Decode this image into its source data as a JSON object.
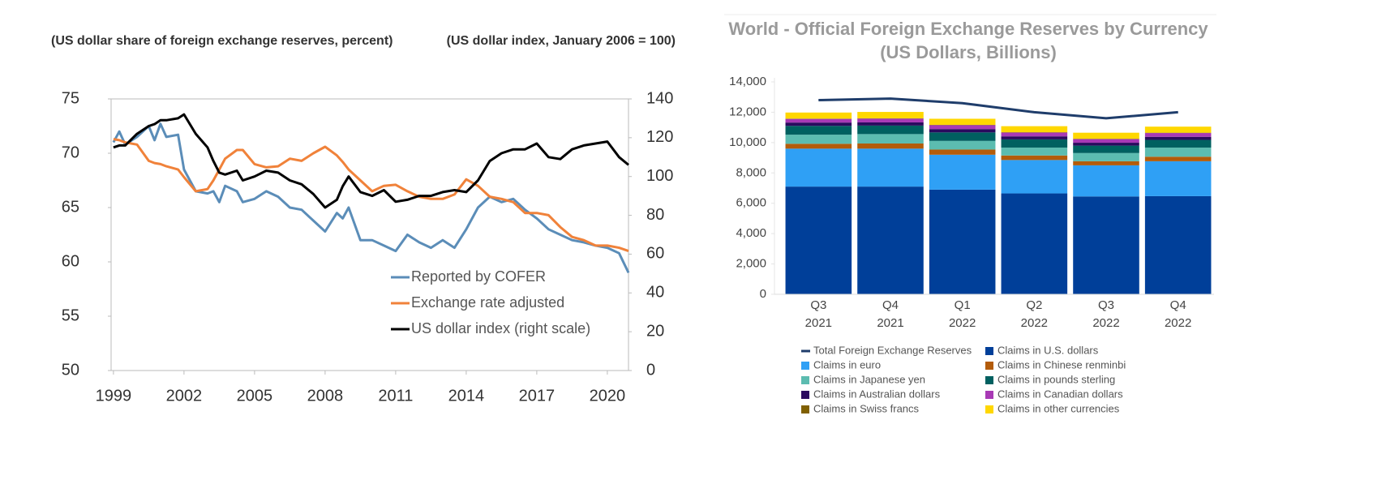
{
  "chart_data": [
    {
      "type": "line",
      "ylabel": "(US dollar share of foreign exchange reserves, percent)",
      "y2label": "(US dollar index, January 2006 = 100)",
      "x": [
        1999,
        1999.25,
        1999.5,
        2000,
        2000.5,
        2000.75,
        2001,
        2001.25,
        2001.75,
        2002,
        2002.5,
        2003,
        2003.25,
        2003.5,
        2003.75,
        2004.25,
        2004.5,
        2005,
        2005.5,
        2006,
        2006.5,
        2007,
        2007.5,
        2008,
        2008.5,
        2008.75,
        2009,
        2009.5,
        2010,
        2010.5,
        2011,
        2011.5,
        2012,
        2012.5,
        2013,
        2013.5,
        2014,
        2014.5,
        2015,
        2015.5,
        2016,
        2016.5,
        2017,
        2017.5,
        2018,
        2018.5,
        2019,
        2019.5,
        2020,
        2020.5,
        2020.9
      ],
      "series": [
        {
          "name": "Reported by COFER",
          "color": "#5b8db8",
          "values": [
            71,
            72,
            70.8,
            71.5,
            72.5,
            71.2,
            72.7,
            71.5,
            71.7,
            68.5,
            66.5,
            66.3,
            66.5,
            65.5,
            67,
            66.5,
            65.5,
            65.8,
            66.5,
            66,
            65,
            64.8,
            63.8,
            62.8,
            64.5,
            64,
            65,
            62,
            62,
            61.5,
            61,
            62.5,
            61.8,
            61.3,
            62,
            61.3,
            63,
            65,
            66,
            65.5,
            65.8,
            64.8,
            64,
            63,
            62.5,
            62,
            61.8,
            61.5,
            61.3,
            60.8,
            59
          ]
        },
        {
          "name": "Exchange rate adjusted",
          "color": "#f0823a",
          "values": [
            71.3,
            71.2,
            71,
            70.8,
            69.3,
            69.1,
            69,
            68.8,
            68.5,
            67.8,
            66.5,
            66.7,
            67.5,
            68.5,
            69.5,
            70.3,
            70.3,
            69,
            68.7,
            68.8,
            69.5,
            69.3,
            70,
            70.6,
            69.8,
            69.2,
            68.5,
            67.5,
            66.5,
            67,
            67.1,
            66.5,
            66,
            65.8,
            65.8,
            66.2,
            67.6,
            67,
            66,
            65.8,
            65.5,
            64.5,
            64.5,
            64.3,
            63.2,
            62.3,
            62,
            61.5,
            61.5,
            61.3,
            61
          ]
        },
        {
          "name": "US dollar index (right scale)",
          "color": "#000000",
          "axis": "y2",
          "values": [
            115,
            116,
            116,
            122,
            126,
            127,
            129,
            129,
            130,
            132,
            122,
            115,
            108,
            102,
            101,
            103,
            98,
            100,
            103,
            102,
            98,
            96,
            91,
            84,
            88,
            95,
            100,
            92,
            90,
            93,
            87,
            88,
            90,
            90,
            92,
            93,
            92,
            98,
            108,
            112,
            114,
            114,
            117,
            110,
            109,
            114,
            116,
            117,
            118,
            110,
            106
          ]
        }
      ],
      "xlim": [
        1998.9,
        2020.9
      ],
      "xticks": [
        1999,
        2002,
        2005,
        2008,
        2011,
        2014,
        2017,
        2020
      ],
      "ylim": [
        50,
        75
      ],
      "yticks": [
        50,
        55,
        60,
        65,
        70,
        75
      ],
      "y2lim": [
        0,
        140
      ],
      "y2ticks": [
        0,
        20,
        40,
        60,
        80,
        100,
        120,
        140
      ],
      "legend": "lower right"
    },
    {
      "type": "bar",
      "stacked": true,
      "title": "World - Official Foreign Exchange Reserves by Currency",
      "subtitle": "(US Dollars, Billions)",
      "categories": [
        "Q3 2021",
        "Q4 2021",
        "Q1 2022",
        "Q2 2022",
        "Q3 2022",
        "Q4 2022"
      ],
      "series": [
        {
          "name": "Total Foreign Exchange Reserves",
          "type": "line",
          "color": "#1f3d6b",
          "values": [
            12800,
            12900,
            12600,
            12000,
            11600,
            12000
          ]
        },
        {
          "name": "Claims in U.S. dollars",
          "color": "#003f99",
          "values": [
            7100,
            7100,
            6900,
            6650,
            6450,
            6470
          ]
        },
        {
          "name": "Claims in euro",
          "color": "#2fa0f5",
          "values": [
            2500,
            2500,
            2300,
            2200,
            2050,
            2300
          ]
        },
        {
          "name": "Claims in Chinese renminbi",
          "color": "#b35c0a",
          "values": [
            320,
            340,
            340,
            300,
            270,
            300
          ]
        },
        {
          "name": "Claims in Japanese yen",
          "color": "#5cbcb0",
          "values": [
            600,
            620,
            570,
            520,
            540,
            600
          ]
        },
        {
          "name": "Claims in pounds sterling",
          "color": "#006060",
          "values": [
            580,
            560,
            560,
            540,
            490,
            510
          ]
        },
        {
          "name": "Claims in Australian dollars",
          "color": "#2a0a5e",
          "values": [
            220,
            210,
            220,
            200,
            190,
            200
          ]
        },
        {
          "name": "Claims in Canadian dollars",
          "color": "#a83ab5",
          "values": [
            240,
            250,
            260,
            250,
            240,
            250
          ]
        },
        {
          "name": "Claims in Swiss francs",
          "color": "#806000",
          "values": [
            20,
            20,
            20,
            20,
            20,
            20
          ]
        },
        {
          "name": "Claims in other currencies",
          "color": "#ffd700",
          "values": [
            400,
            420,
            400,
            400,
            400,
            400
          ]
        }
      ],
      "ylim": [
        0,
        14000
      ],
      "yticks": [
        0,
        {
          "value": 2000,
          "label": "2,000"
        },
        {
          "value": 4000,
          "label": "4,000"
        },
        {
          "value": 6000,
          "label": "6,000"
        },
        {
          "value": 8000,
          "label": "8,000"
        },
        {
          "value": 10000,
          "label": "10,000"
        },
        {
          "value": 12000,
          "label": "12,000"
        },
        {
          "value": 14000,
          "label": "14,000"
        }
      ],
      "legend": "bottom"
    }
  ]
}
